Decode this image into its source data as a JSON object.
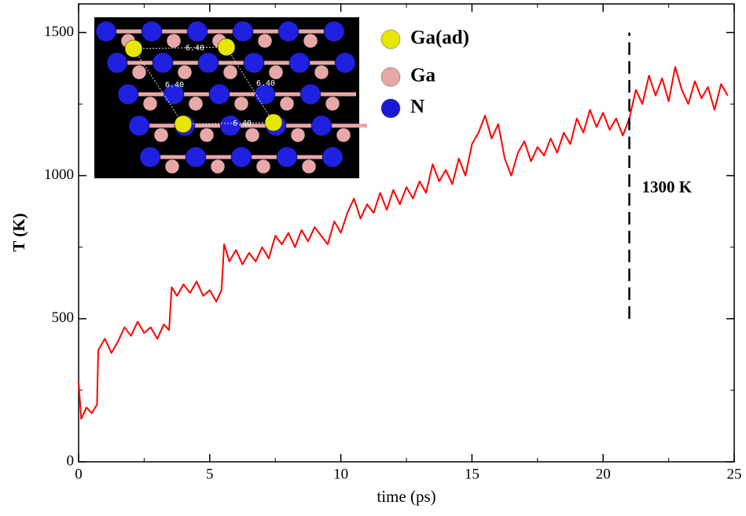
{
  "chart_data": {
    "type": "line",
    "x_label": "time (ps)",
    "y_label": "T (K)",
    "xlim": [
      0,
      25
    ],
    "ylim": [
      0,
      1600
    ],
    "xticks": [
      0,
      5,
      10,
      15,
      20,
      25
    ],
    "yticks": [
      0,
      500,
      1000,
      1500
    ],
    "xminorticks": [
      2.5,
      7.5,
      12.5,
      17.5,
      22.5
    ],
    "yminorticks": [
      250,
      750,
      1250
    ],
    "series": [
      {
        "color": "#ff0000",
        "x": [
          0,
          0.1,
          0.3,
          0.5,
          0.7,
          0.75,
          1.0,
          1.25,
          1.5,
          1.75,
          2.0,
          2.25,
          2.5,
          2.75,
          3.0,
          3.25,
          3.45,
          3.55,
          3.75,
          4.0,
          4.25,
          4.5,
          4.75,
          5.0,
          5.25,
          5.45,
          5.55,
          5.75,
          6.0,
          6.25,
          6.5,
          6.75,
          7.0,
          7.25,
          7.5,
          7.75,
          8.0,
          8.25,
          8.5,
          8.75,
          9.0,
          9.25,
          9.5,
          9.75,
          10.0,
          10.25,
          10.5,
          10.75,
          11.0,
          11.25,
          11.5,
          11.75,
          12.0,
          12.25,
          12.5,
          12.75,
          13.0,
          13.25,
          13.5,
          13.75,
          14.0,
          14.25,
          14.5,
          14.75,
          15.0,
          15.25,
          15.5,
          15.75,
          16.0,
          16.25,
          16.5,
          16.75,
          17.0,
          17.25,
          17.5,
          17.75,
          18.0,
          18.25,
          18.5,
          18.75,
          19.0,
          19.25,
          19.5,
          19.75,
          20.0,
          20.25,
          20.5,
          20.75,
          21.0,
          21.25,
          21.5,
          21.75,
          22.0,
          22.25,
          22.5,
          22.75,
          23.0,
          23.25,
          23.5,
          23.75,
          24.0,
          24.25,
          24.5,
          24.75
        ],
        "values": [
          280,
          150,
          190,
          170,
          200,
          390,
          430,
          380,
          420,
          470,
          440,
          490,
          450,
          470,
          430,
          480,
          460,
          610,
          580,
          620,
          590,
          630,
          580,
          600,
          560,
          600,
          760,
          700,
          740,
          690,
          730,
          700,
          750,
          710,
          790,
          760,
          800,
          750,
          810,
          770,
          820,
          790,
          760,
          840,
          800,
          870,
          920,
          850,
          900,
          870,
          940,
          880,
          950,
          900,
          960,
          920,
          980,
          940,
          1040,
          980,
          1020,
          970,
          1060,
          1000,
          1110,
          1150,
          1210,
          1130,
          1180,
          1060,
          1000,
          1080,
          1120,
          1050,
          1100,
          1070,
          1130,
          1080,
          1150,
          1110,
          1200,
          1150,
          1230,
          1170,
          1220,
          1160,
          1200,
          1140,
          1200,
          1300,
          1250,
          1350,
          1280,
          1340,
          1260,
          1380,
          1300,
          1250,
          1330,
          1270,
          1310,
          1230,
          1320,
          1280
        ]
      }
    ],
    "vline": {
      "x": 21,
      "y": [
        500,
        1500
      ],
      "label": "1300 K"
    },
    "inset": {
      "distance_labels": [
        "6.40",
        "6.40",
        "6.40",
        "6.40"
      ],
      "legend": [
        {
          "name": "Ga(ad)",
          "color": "#e6e600"
        },
        {
          "name": "Ga",
          "color": "#e8a8a8"
        },
        {
          "name": "N",
          "color": "#1a1ad6"
        }
      ]
    }
  }
}
